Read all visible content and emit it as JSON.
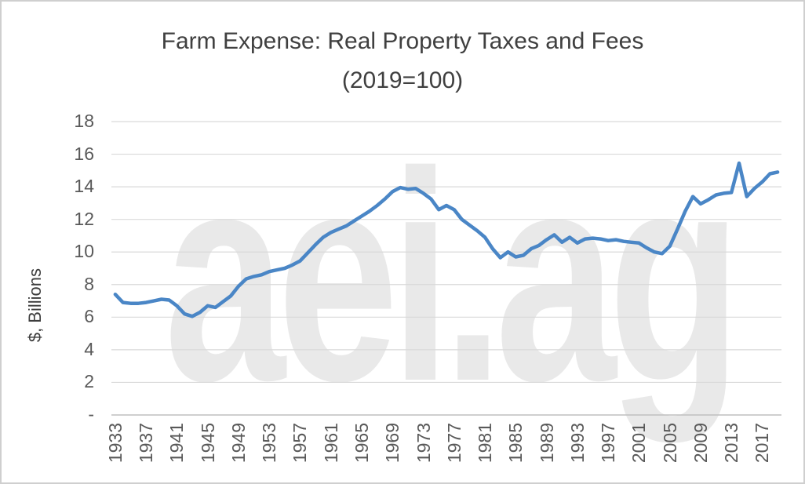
{
  "chart": {
    "title_line1": "Farm Expense: Real Property Taxes and Fees",
    "title_line2": "(2019=100)",
    "y_axis_title": "$, Billions",
    "watermark": "aei.ag",
    "colors": {
      "line": "#4a86c6",
      "gridline": "#d9d9d9",
      "axis_line": "#bfbfbf",
      "tick_label": "#595959",
      "title": "#404040",
      "watermark": "#e9e9e9",
      "background": "#ffffff"
    },
    "chart_data": {
      "type": "line",
      "title": "Farm Expense: Real Property Taxes and Fees (2019=100)",
      "xlabel": "",
      "ylabel": "$, Billions",
      "ylim": [
        0,
        18
      ],
      "ytick_interval": 2,
      "grid": "horizontal",
      "legend": "none",
      "x": [
        1933,
        1934,
        1935,
        1936,
        1937,
        1938,
        1939,
        1940,
        1941,
        1942,
        1943,
        1944,
        1945,
        1946,
        1947,
        1948,
        1949,
        1950,
        1951,
        1952,
        1953,
        1954,
        1955,
        1956,
        1957,
        1958,
        1959,
        1960,
        1961,
        1962,
        1963,
        1964,
        1965,
        1966,
        1967,
        1968,
        1969,
        1970,
        1971,
        1972,
        1973,
        1974,
        1975,
        1976,
        1977,
        1978,
        1979,
        1980,
        1981,
        1982,
        1983,
        1984,
        1985,
        1986,
        1987,
        1988,
        1989,
        1990,
        1991,
        1992,
        1993,
        1994,
        1995,
        1996,
        1997,
        1998,
        1999,
        2000,
        2001,
        2002,
        2003,
        2004,
        2005,
        2006,
        2007,
        2008,
        2009,
        2010,
        2011,
        2012,
        2013,
        2014,
        2015,
        2016,
        2017,
        2018,
        2019
      ],
      "values": [
        7.4,
        6.9,
        6.85,
        6.85,
        6.9,
        7.0,
        7.1,
        7.05,
        6.7,
        6.2,
        6.05,
        6.3,
        6.7,
        6.6,
        6.95,
        7.3,
        7.9,
        8.35,
        8.5,
        8.6,
        8.8,
        8.9,
        9.0,
        9.2,
        9.45,
        9.95,
        10.45,
        10.9,
        11.2,
        11.4,
        11.6,
        11.9,
        12.2,
        12.5,
        12.85,
        13.25,
        13.7,
        13.95,
        13.85,
        13.9,
        13.6,
        13.25,
        12.6,
        12.85,
        12.6,
        12.0,
        11.65,
        11.3,
        10.9,
        10.2,
        9.65,
        10.0,
        9.7,
        9.8,
        10.2,
        10.4,
        10.75,
        11.05,
        10.6,
        10.9,
        10.55,
        10.8,
        10.85,
        10.8,
        10.7,
        10.75,
        10.65,
        10.6,
        10.55,
        10.25,
        10.0,
        9.9,
        10.35,
        11.4,
        12.5,
        13.4,
        12.95,
        13.2,
        13.5,
        13.6,
        13.65,
        15.45,
        13.4,
        13.9,
        14.3,
        14.8,
        14.9
      ],
      "yticks": [
        {
          "value": 18,
          "label": "18"
        },
        {
          "value": 16,
          "label": "16"
        },
        {
          "value": 14,
          "label": "14"
        },
        {
          "value": 12,
          "label": "12"
        },
        {
          "value": 10,
          "label": "10"
        },
        {
          "value": 8,
          "label": "8"
        },
        {
          "value": 6,
          "label": "6"
        },
        {
          "value": 4,
          "label": "4"
        },
        {
          "value": 2,
          "label": "2"
        },
        {
          "value": 0,
          "label": "-"
        }
      ],
      "xticks": [
        "1933",
        "1937",
        "1941",
        "1945",
        "1949",
        "1953",
        "1957",
        "1961",
        "1965",
        "1969",
        "1973",
        "1977",
        "1981",
        "1985",
        "1989",
        "1993",
        "1997",
        "2001",
        "2005",
        "2009",
        "2013",
        "2017"
      ]
    }
  }
}
